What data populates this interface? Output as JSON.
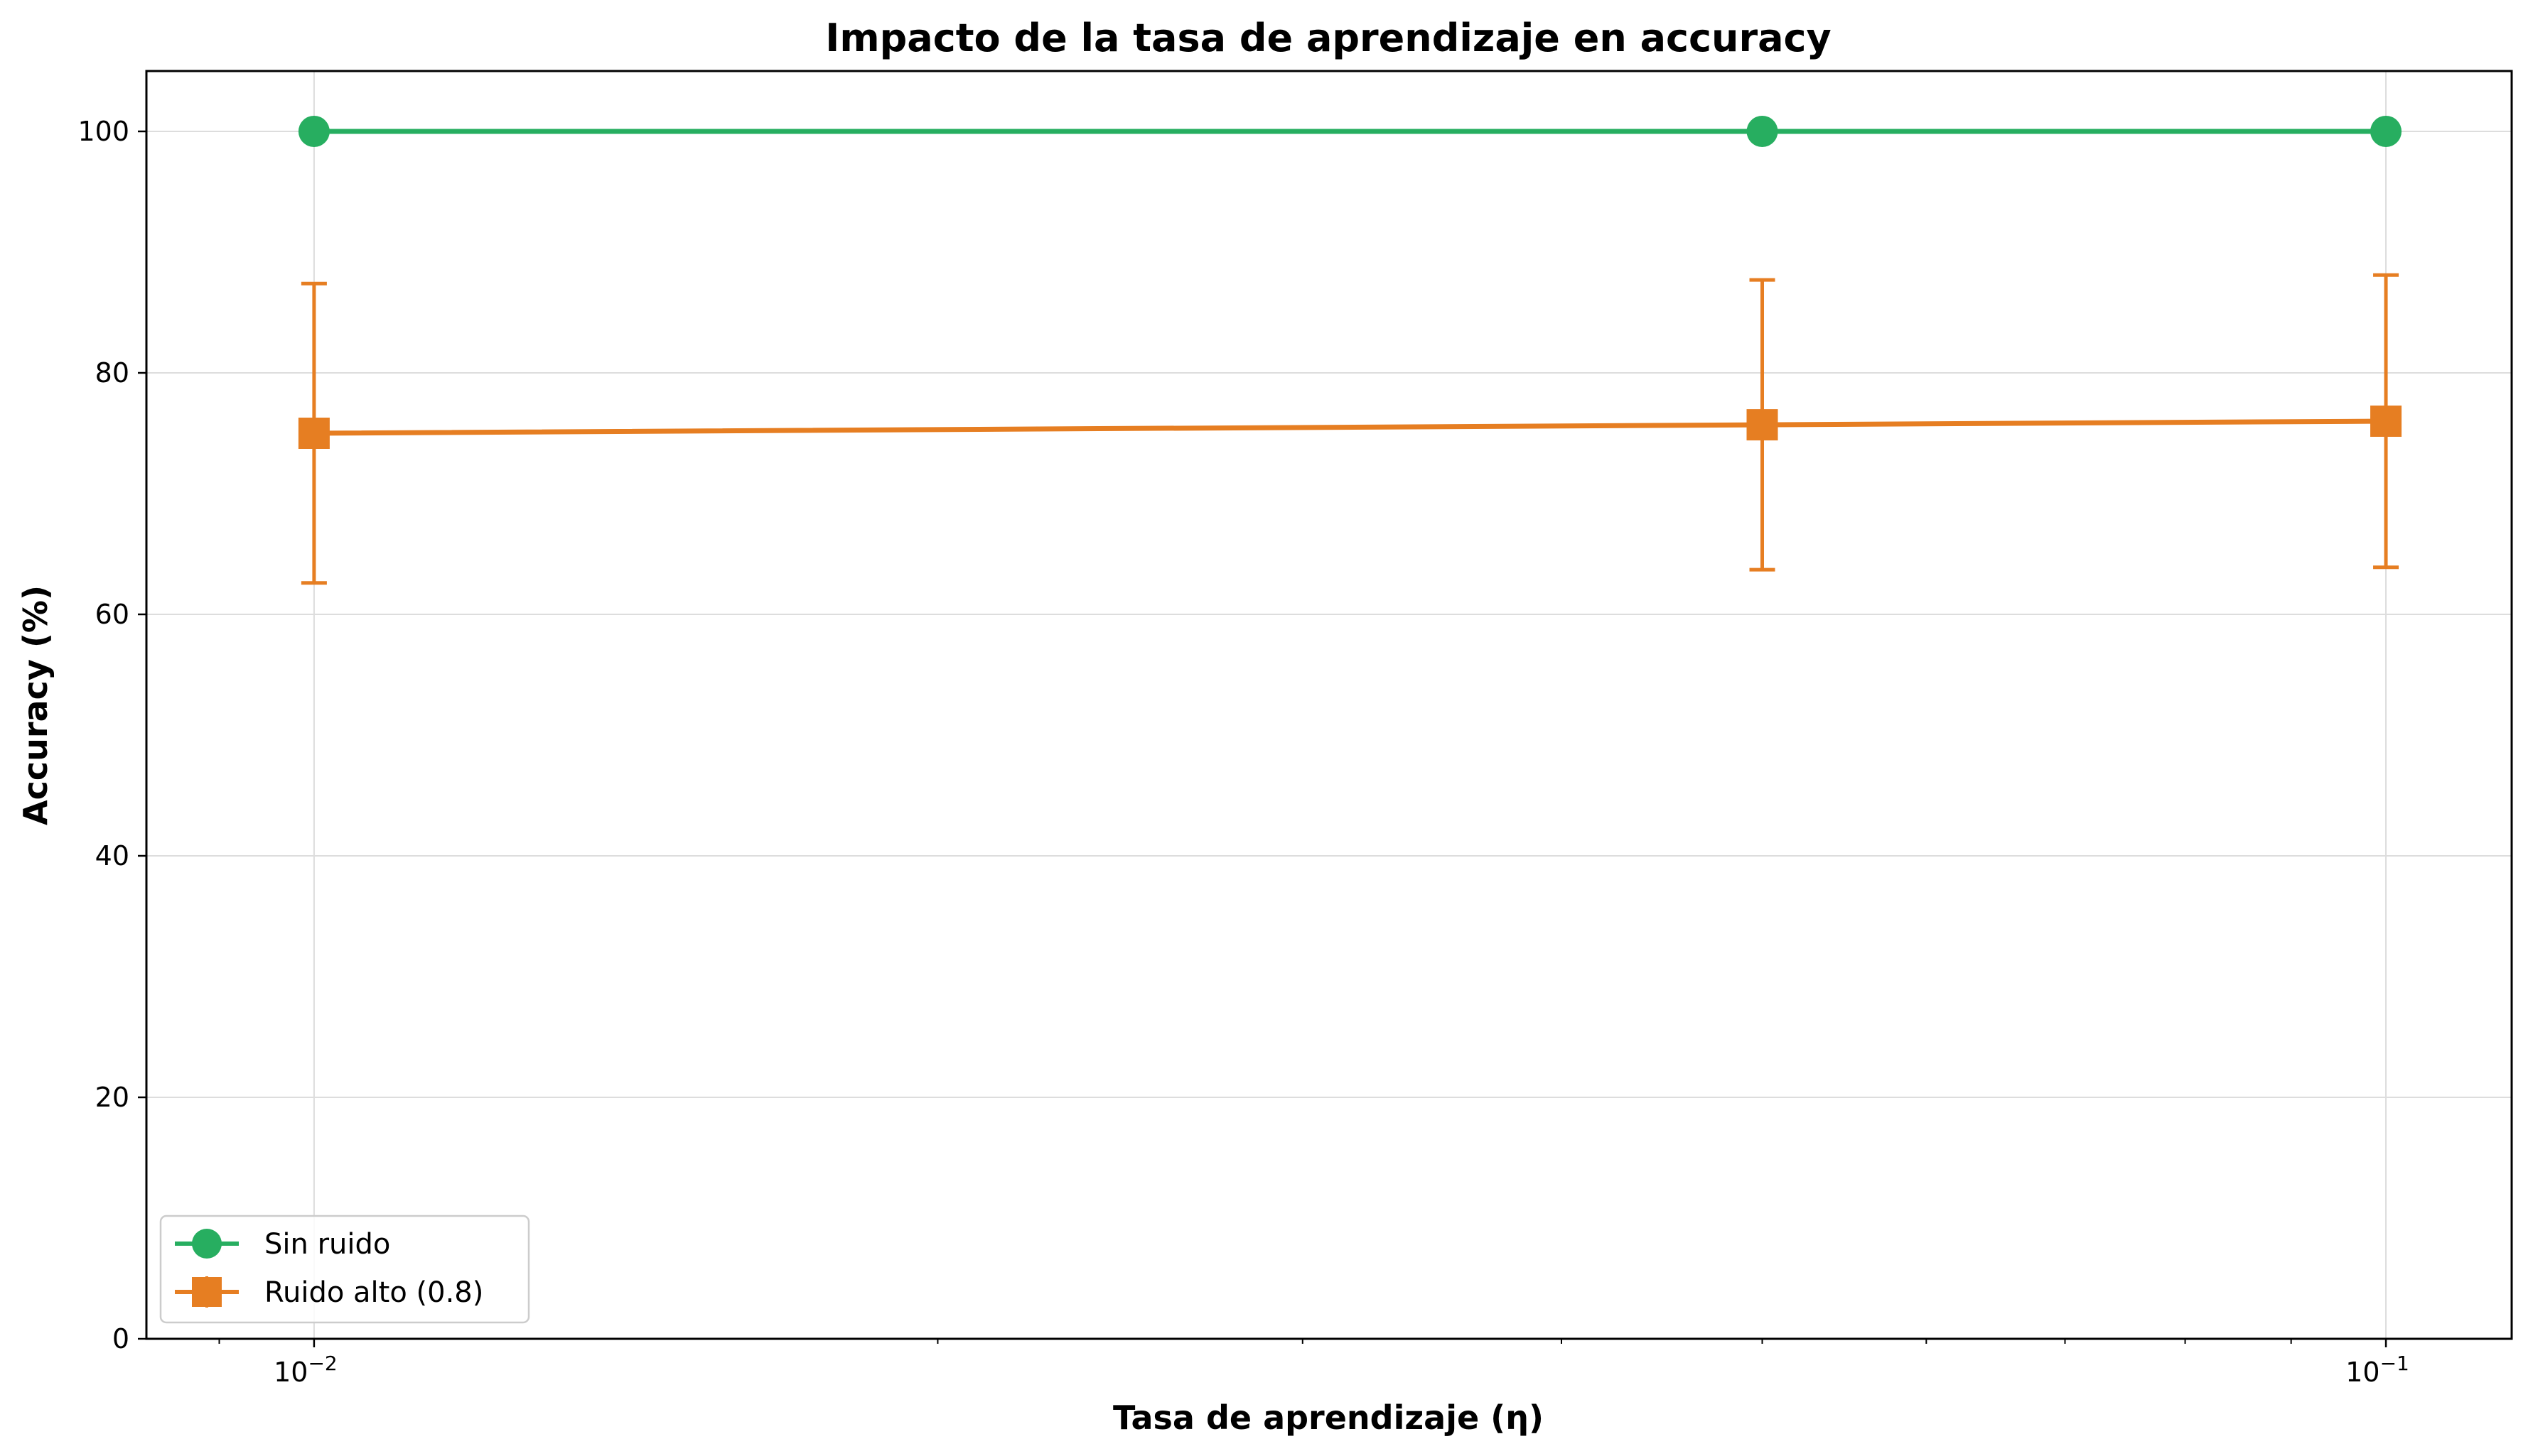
{
  "chart_data": {
    "type": "line",
    "title": "Impacto de la tasa de aprendizaje en accuracy",
    "xlabel": "Tasa de aprendizaje (η)",
    "ylabel": "Accuracy (%)",
    "xscale": "log",
    "xlim": [
      0.0083,
      0.115
    ],
    "ylim": [
      0,
      105
    ],
    "yticks": [
      0,
      20,
      40,
      60,
      80,
      100
    ],
    "xticks": [
      {
        "value": 0.01,
        "base": "10",
        "exp": "−2"
      },
      {
        "value": 0.1,
        "base": "10",
        "exp": "−1"
      }
    ],
    "grid": true,
    "legend_position": "lower-left",
    "x": [
      0.01,
      0.05,
      0.1
    ],
    "series": [
      {
        "name": "Sin ruido",
        "color": "#27ae60",
        "marker": "circle",
        "values": [
          100,
          100,
          100
        ],
        "error": [
          0,
          0,
          0
        ]
      },
      {
        "name": "Ruido alto (0.8)",
        "color": "#e67e22",
        "marker": "square",
        "values": [
          75.0,
          75.7,
          76.0
        ],
        "error": [
          12.4,
          12.0,
          12.1
        ]
      }
    ]
  }
}
